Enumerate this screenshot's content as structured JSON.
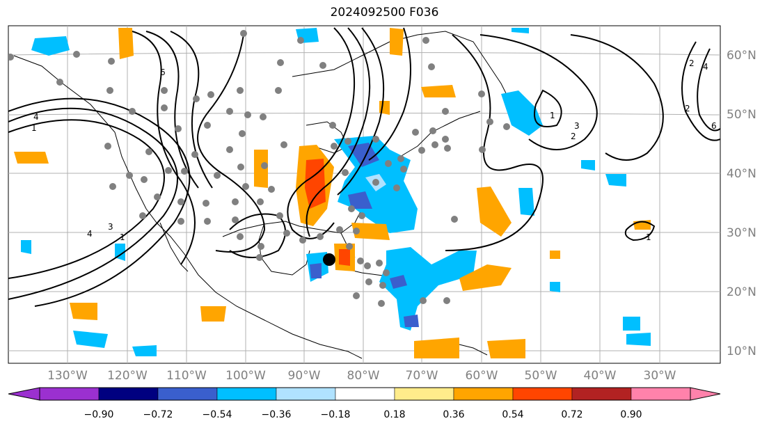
{
  "title": "2024092500 F036",
  "map": {
    "lon_ticks": [
      "130°W",
      "120°W",
      "110°W",
      "100°W",
      "90°W",
      "80°W",
      "70°W",
      "60°W",
      "50°W",
      "40°W",
      "30°W"
    ],
    "lat_ticks": [
      "60°N",
      "50°N",
      "40°N",
      "30°N",
      "20°N",
      "10°N"
    ],
    "contour_labels": [
      "4",
      "1",
      "1",
      "3",
      "4",
      "2",
      "6",
      "4",
      "2",
      "3",
      "1",
      "2",
      "6",
      "1"
    ]
  },
  "colorbar": {
    "ticks": [
      "−0.90",
      "−0.72",
      "−0.54",
      "−0.36",
      "−0.18",
      "0.18",
      "0.36",
      "0.54",
      "0.72",
      "0.90"
    ],
    "colors": [
      "#9b30d0",
      "#000080",
      "#3a5fcd",
      "#00bfff",
      "#b0e2ff",
      "#ffffff",
      "#ffec8b",
      "#ffa500",
      "#ff4500",
      "#b22222",
      "#ff82ab"
    ]
  },
  "colors": {
    "station": "#808080",
    "storm_marker": "#000000",
    "grid": "#b0b0b0"
  }
}
